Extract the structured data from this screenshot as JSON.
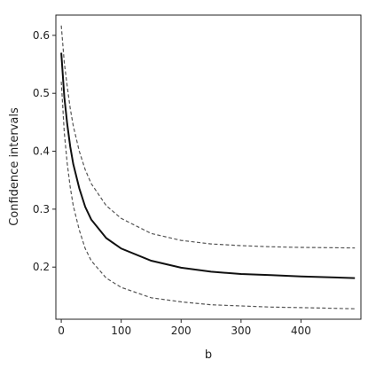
{
  "chart_data": {
    "type": "line",
    "title": "",
    "xlabel": "b",
    "ylabel": "Confidence intervals",
    "xlim": [
      -9,
      500
    ],
    "ylim": [
      0.11,
      0.635
    ],
    "xticks": [
      0,
      100,
      200,
      300,
      400
    ],
    "yticks": [
      0.2,
      0.3,
      0.4,
      0.5,
      0.6
    ],
    "xtick_labels": [
      "0",
      "100",
      "200",
      "300",
      "400"
    ],
    "ytick_labels": [
      "0.2",
      "0.3",
      "0.4",
      "0.5",
      "0.6"
    ],
    "grid": false,
    "legend": "none",
    "series": [
      {
        "style": "dashed",
        "color": "#555555",
        "x": [
          0,
          5,
          10,
          15,
          20,
          30,
          40,
          50,
          75,
          100,
          150,
          200,
          250,
          300,
          350,
          400,
          490
        ],
        "y": [
          0.617,
          0.553,
          0.512,
          0.474,
          0.444,
          0.4,
          0.368,
          0.344,
          0.306,
          0.284,
          0.258,
          0.246,
          0.24,
          0.237,
          0.235,
          0.234,
          0.233
        ]
      },
      {
        "style": "solid",
        "color": "#111111",
        "x": [
          0,
          5,
          10,
          15,
          20,
          30,
          40,
          50,
          75,
          100,
          150,
          200,
          250,
          300,
          350,
          400,
          490
        ],
        "y": [
          0.57,
          0.494,
          0.447,
          0.408,
          0.378,
          0.336,
          0.304,
          0.282,
          0.25,
          0.232,
          0.211,
          0.199,
          0.192,
          0.188,
          0.186,
          0.184,
          0.181
        ]
      },
      {
        "style": "dashed",
        "color": "#555555",
        "x": [
          0,
          5,
          10,
          15,
          20,
          30,
          40,
          50,
          75,
          100,
          150,
          200,
          250,
          300,
          350,
          400,
          490
        ],
        "y": [
          0.52,
          0.432,
          0.379,
          0.338,
          0.306,
          0.264,
          0.232,
          0.211,
          0.181,
          0.165,
          0.147,
          0.14,
          0.135,
          0.133,
          0.131,
          0.13,
          0.128
        ]
      }
    ]
  }
}
